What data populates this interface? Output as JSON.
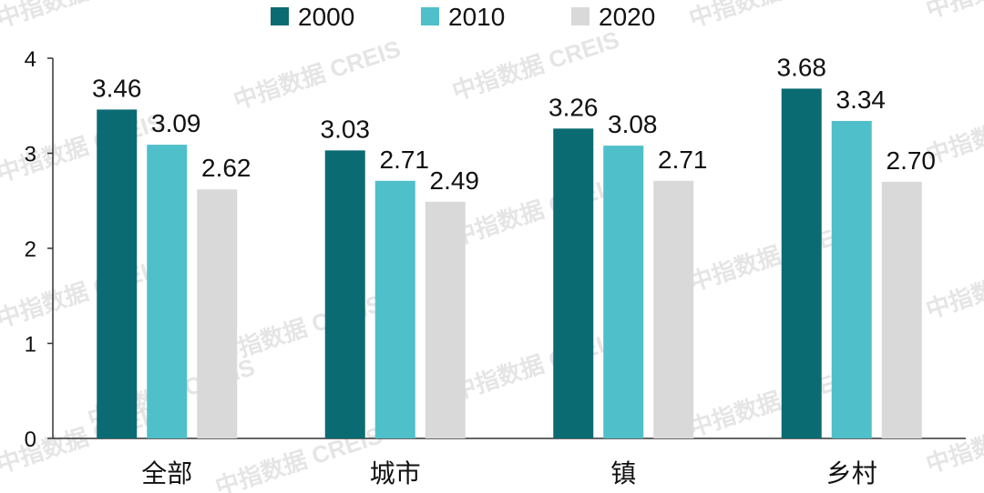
{
  "chart_data": {
    "type": "bar",
    "title": "",
    "xlabel": "",
    "ylabel": "",
    "categories": [
      "全部",
      "城市",
      "镇",
      "乡村"
    ],
    "series": [
      {
        "name": "2000",
        "values": [
          3.46,
          3.03,
          3.26,
          3.68
        ]
      },
      {
        "name": "2010",
        "values": [
          3.09,
          2.71,
          3.08,
          3.34
        ]
      },
      {
        "name": "2020",
        "values": [
          2.62,
          2.49,
          2.71,
          2.7
        ]
      }
    ],
    "data_labels": [
      [
        "3.46",
        "3.03",
        "3.26",
        "3.68"
      ],
      [
        "3.09",
        "2.71",
        "3.08",
        "3.34"
      ],
      [
        "2.62",
        "2.49",
        "2.71",
        "2.70"
      ]
    ],
    "ylim": [
      0,
      4
    ],
    "yticks": [
      0,
      1,
      2,
      3,
      4
    ],
    "grid": false,
    "legend_position": "top-center",
    "colors": [
      "#0b6b73",
      "#4fbfca",
      "#d9d9d9"
    ],
    "watermark": "中指数据 CREIS"
  }
}
